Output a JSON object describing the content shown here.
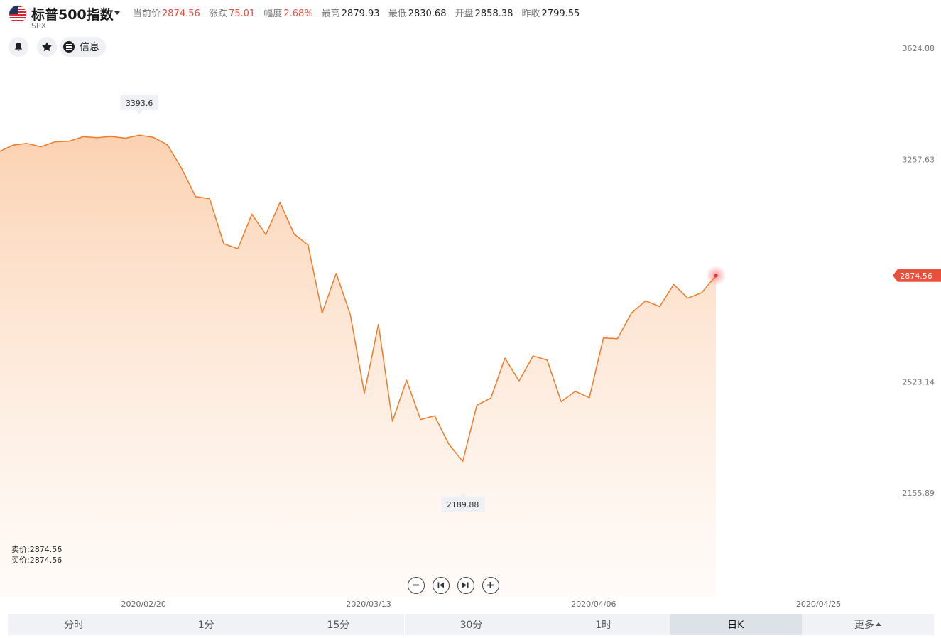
{
  "header": {
    "name": "标普500指数",
    "code": "SPX",
    "quote": [
      {
        "label": "当前价",
        "value": "2874.56",
        "up": true
      },
      {
        "label": "涨跌",
        "value": "75.01",
        "up": true
      },
      {
        "label": "幅度",
        "value": "2.68%",
        "up": true
      },
      {
        "label": "最高",
        "value": "2879.93",
        "up": false
      },
      {
        "label": "最低",
        "value": "2830.68",
        "up": false
      },
      {
        "label": "开盘",
        "value": "2858.38",
        "up": false
      },
      {
        "label": "昨收",
        "value": "2799.55",
        "up": false
      }
    ]
  },
  "actions": {
    "info_label": "信息",
    "alert_icon": "bell-icon",
    "favorite_icon": "star-icon",
    "info_icon": "list-icon"
  },
  "side_quote": {
    "sell": "卖价:2874.56",
    "buy": "买价:2874.56"
  },
  "zoom_controls": [
    "zoom-out-icon",
    "skip-back-icon",
    "skip-forward-icon",
    "zoom-in-icon"
  ],
  "tabs": [
    {
      "label": "分时",
      "active": false
    },
    {
      "label": "1分",
      "active": false
    },
    {
      "label": "15分",
      "active": false
    },
    {
      "label": "30分",
      "active": false
    },
    {
      "label": "1时",
      "active": false
    },
    {
      "label": "日K",
      "active": true
    },
    {
      "label": "更多",
      "active": false
    }
  ],
  "colors": {
    "line": "#f07a2a",
    "fill": "#fbd3b4",
    "up": "#e8503d",
    "price_tag": "#e8503d"
  },
  "chart_data": {
    "type": "area",
    "ylim": [
      1968.4,
      3624.88
    ],
    "y_ticks": [
      "3624.88",
      "3257.63",
      "2523.14",
      "2155.89"
    ],
    "x_ticks": [
      {
        "index": 11,
        "label": "2020/02/20"
      },
      {
        "index": 27,
        "label": "2020/03/13"
      },
      {
        "index": 43,
        "label": "2020/04/06"
      },
      {
        "index": 59,
        "label": "2020/04/25"
      }
    ],
    "values": [
      3255,
      3283,
      3305,
      3311,
      3300,
      3316,
      3318,
      3333,
      3330,
      3334,
      3328,
      3338,
      3331,
      3306,
      3229,
      3135,
      3128,
      2980,
      2963,
      3077,
      3010,
      3116,
      3012,
      2975,
      2751,
      2882,
      2746,
      2486,
      2713,
      2393,
      2529,
      2399,
      2411,
      2318,
      2261,
      2446,
      2470,
      2602,
      2526,
      2609,
      2595,
      2458,
      2492,
      2471,
      2668,
      2666,
      2751,
      2791,
      2772,
      2845,
      2800,
      2818,
      2874.56
    ],
    "max_label": {
      "index": 11,
      "value": "3393.6"
    },
    "min_label": {
      "index": 34,
      "value": "2189.88"
    },
    "current_price": "2874.56"
  }
}
